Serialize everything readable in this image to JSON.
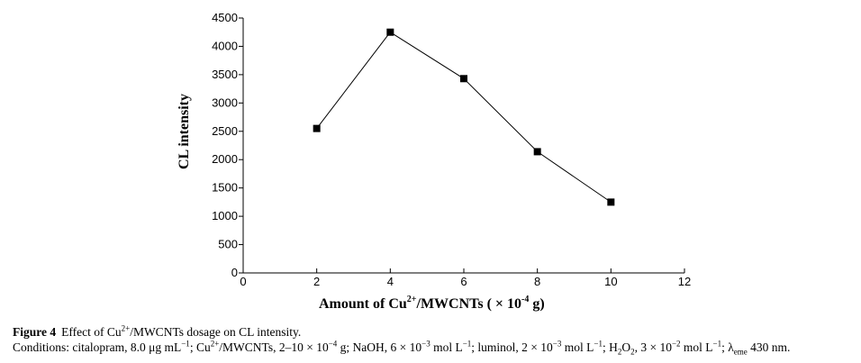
{
  "chart_data": {
    "type": "line",
    "title": "",
    "xlabel": {
      "prefix": "Amount of Cu",
      "sup": "2+",
      "middle": "/MWCNTs ( × 10",
      "exp": "-4",
      "suffix": " g)"
    },
    "ylabel": "CL intensity",
    "xlim": [
      0,
      12
    ],
    "ylim": [
      0,
      4500
    ],
    "x_ticks": [
      0,
      2,
      4,
      6,
      8,
      10,
      12
    ],
    "y_ticks": [
      0,
      500,
      1000,
      1500,
      2000,
      2500,
      3000,
      3500,
      4000,
      4500
    ],
    "grid": false,
    "legend": "none",
    "marker": "square",
    "line_color": "#000000",
    "series": [
      {
        "x": [
          2,
          4,
          6,
          8,
          10
        ],
        "y": [
          2550,
          4250,
          3430,
          2140,
          1250
        ]
      }
    ]
  },
  "caption": {
    "label": "Figure 4",
    "line1": {
      "a": "Effect of Cu",
      "sup": "2+",
      "b": "/MWCNTs dosage on CL intensity."
    },
    "line2": {
      "p1": "Conditions: citalopram, 8.0 μg mL",
      "p1_sup": "−1",
      "p2": "; Cu",
      "p2_sup": "2+",
      "p3": "/MWCNTs, 2–10 × 10",
      "p3_sup": "−4",
      "p4": " g; NaOH, 6 × 10",
      "p4_sup": "−3",
      "p5": " mol L",
      "p5_sup": "−1",
      "p6": "; luminol, 2 × 10",
      "p6_sup": "−3",
      "p7": " mol L",
      "p7_sup": "−1",
      "p8": "; H",
      "p8_sub": "2",
      "p9": "O",
      "p9_sub": "2",
      "p10": ", 3 × 10",
      "p10_sup": "−2",
      "p11": " mol L",
      "p11_sup": "−1",
      "p12": "; λ",
      "p12_sub": "eme",
      "p13": " 430 nm."
    }
  }
}
